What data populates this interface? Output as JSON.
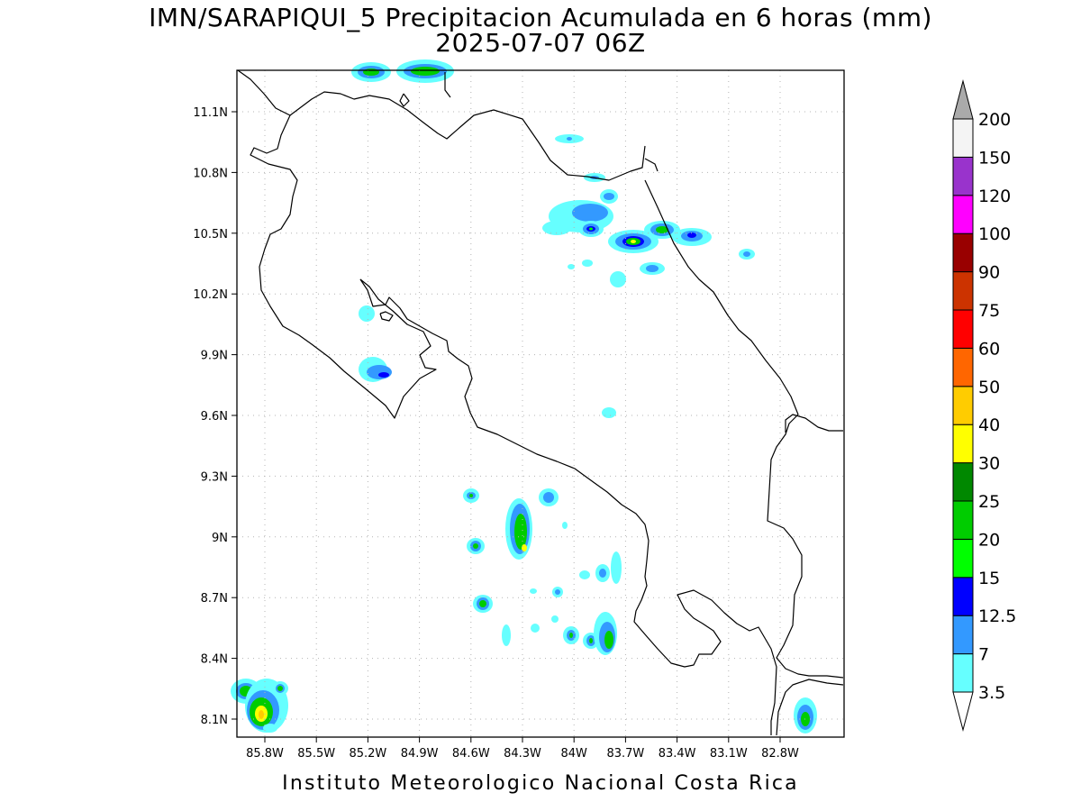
{
  "title": {
    "line1": "IMN/SARAPIQUI_5 Precipitacion Acumulada en 6 horas (mm)",
    "line2": "2025-07-07 06Z"
  },
  "footer": "Instituto Meteorologico Nacional Costa Rica",
  "map": {
    "lon_range": [
      -85.98,
      -82.6
    ],
    "lat_range": [
      8.0,
      11.3
    ],
    "x_ticks": [
      "85.8W",
      "85.5W",
      "85.2W",
      "84.9W",
      "84.6W",
      "84.3W",
      "84W",
      "83.7W",
      "83.4W",
      "83.1W",
      "82.8W"
    ],
    "y_ticks": [
      "11.1N",
      "10.8N",
      "10.5N",
      "10.2N",
      "9.9N",
      "9.6N",
      "9.3N",
      "9N",
      "8.7N",
      "8.4N",
      "8.1N"
    ],
    "grid": true
  },
  "colorbar": {
    "levels": [
      "3.5",
      "7",
      "12.5",
      "15",
      "20",
      "25",
      "30",
      "40",
      "50",
      "60",
      "75",
      "90",
      "100",
      "120",
      "150",
      "200"
    ],
    "colors": [
      "#66ffff",
      "#3399ff",
      "#0000ff",
      "#00ff00",
      "#00cc00",
      "#008800",
      "#ffff00",
      "#ffcc00",
      "#ff6600",
      "#ff0000",
      "#cc3300",
      "#990000",
      "#ff00ff",
      "#9933cc",
      "#f4f4f4",
      "#aaaaaa"
    ],
    "under_color": "#ffffff",
    "over_color": "#aaaaaa"
  }
}
